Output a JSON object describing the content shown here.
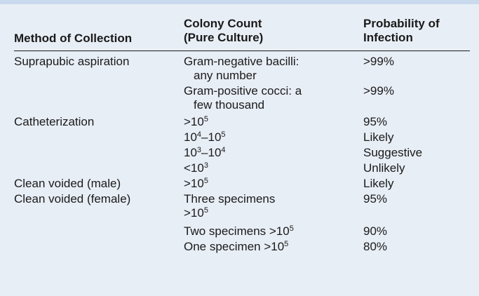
{
  "table": {
    "headers": {
      "method": "Method of Collection",
      "colony_line1": "Colony Count",
      "colony_line2": "(Pure Culture)",
      "prob_line1": "Probability of",
      "prob_line2": "Infection"
    },
    "rows": [
      {
        "method": "Suprapubic aspiration",
        "count_line1": "Gram-negative bacilli:",
        "count_line2": "any number",
        "prob": ">99%"
      },
      {
        "method": "",
        "count_line1": "Gram-positive cocci: a",
        "count_line2": "few thousand",
        "prob": ">99%"
      },
      {
        "method": "Catheterization",
        "count_base": ">10",
        "count_exp": "5",
        "prob": "95%"
      },
      {
        "method": "",
        "count_base1": "10",
        "count_exp1": "4",
        "count_mid": "–10",
        "count_exp2": "5",
        "prob": "Likely"
      },
      {
        "method": "",
        "count_base1": "10",
        "count_exp1": "3",
        "count_mid": "–10",
        "count_exp2": "4",
        "prob": "Suggestive"
      },
      {
        "method": "",
        "count_base": "<10",
        "count_exp": "3",
        "prob": "Unlikely"
      },
      {
        "method": "Clean voided (male)",
        "count_base": ">10",
        "count_exp": "5",
        "prob": "Likely"
      },
      {
        "method": "Clean voided (female)",
        "count_line1": "Three specimens",
        "count_base": ">10",
        "count_exp": "5",
        "prob": "95%"
      },
      {
        "method": "",
        "count_base": "Two specimens >10",
        "count_exp": "5",
        "prob": "90%"
      },
      {
        "method": "",
        "count_base": "One specimen >10",
        "count_exp": "5",
        "prob": "80%"
      }
    ]
  }
}
